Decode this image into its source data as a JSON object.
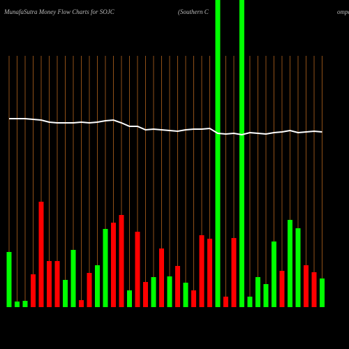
{
  "chart_data": {
    "type": "bar",
    "title": "MunafaSutra  Money  Flow  Charts for SOJC",
    "subtitle": "(Southern  C",
    "subtitle_tail": "ompa",
    "ylim": [
      0,
      440
    ],
    "values": [
      79,
      8,
      9,
      47,
      151,
      66,
      66,
      39,
      82,
      10,
      49,
      60,
      112,
      121,
      132,
      24,
      108,
      36,
      43,
      84,
      44,
      59,
      35,
      24,
      103,
      98,
      440,
      15,
      99,
      440,
      15,
      43,
      33,
      94,
      52,
      125,
      113,
      60,
      50,
      41
    ],
    "colors": [
      "#00ff00",
      "#00ff00",
      "#00ff00",
      "#ff0000",
      "#ff0000",
      "#ff0000",
      "#ff0000",
      "#00ff00",
      "#00ff00",
      "#ff0000",
      "#ff0000",
      "#00ff00",
      "#00ff00",
      "#ff0000",
      "#ff0000",
      "#00ff00",
      "#ff0000",
      "#ff0000",
      "#00ff00",
      "#ff0000",
      "#00ff00",
      "#ff0000",
      "#00ff00",
      "#ff0000",
      "#ff0000",
      "#ff0000",
      "#00ff00",
      "#ff0000",
      "#ff0000",
      "#00ff00",
      "#00ff00",
      "#00ff00",
      "#00ff00",
      "#00ff00",
      "#ff0000",
      "#00ff00",
      "#00ff00",
      "#ff0000",
      "#ff0000",
      "#00ff00"
    ],
    "line": {
      "color": "#ffffff",
      "values": [
        270,
        270,
        270,
        269,
        268,
        265,
        264,
        264,
        264,
        265,
        264,
        265,
        267,
        268,
        264,
        259,
        259,
        254,
        255,
        254,
        253,
        252,
        254,
        255,
        255,
        256,
        249,
        248,
        249,
        247,
        250,
        249,
        248,
        250,
        251,
        253,
        250,
        251,
        252,
        251
      ]
    }
  }
}
